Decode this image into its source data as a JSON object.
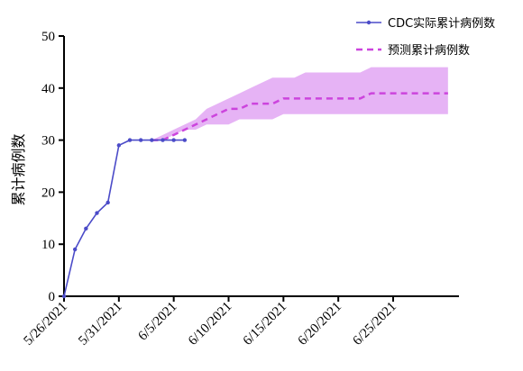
{
  "chart_data": {
    "type": "line",
    "ylabel": "累计病例数",
    "ylim": [
      0,
      50
    ],
    "yticks": [
      0,
      10,
      20,
      30,
      40,
      50
    ],
    "xlim": [
      "2021-05-26",
      "2021-07-01"
    ],
    "xticks": [
      "2021-05-26",
      "2021-05-31",
      "2021-06-05",
      "2021-06-10",
      "2021-06-15",
      "2021-06-20",
      "2021-06-25"
    ],
    "xtick_labels": [
      "5/26/2021",
      "5/31/2021",
      "6/5/2021",
      "6/10/2021",
      "6/15/2021",
      "6/20/2021",
      "6/25/2021"
    ],
    "grid": false,
    "legend_position": "top-right",
    "series": [
      {
        "name": "CDC实际累计病例数",
        "style": "solid-with-markers",
        "color": "#4b4bc8",
        "x": [
          "2021-05-26",
          "2021-05-27",
          "2021-05-28",
          "2021-05-29",
          "2021-05-30",
          "2021-05-31",
          "2021-06-01",
          "2021-06-02",
          "2021-06-03",
          "2021-06-04",
          "2021-06-05",
          "2021-06-06"
        ],
        "y": [
          0,
          9,
          13,
          16,
          18,
          29,
          30,
          30,
          30,
          30,
          30,
          30
        ]
      },
      {
        "name": "预测累计病例数",
        "style": "dashed",
        "color": "#cc44dd",
        "band_color": "#e6b3f5",
        "x": [
          "2021-06-03",
          "2021-06-04",
          "2021-06-05",
          "2021-06-06",
          "2021-06-07",
          "2021-06-08",
          "2021-06-09",
          "2021-06-10",
          "2021-06-11",
          "2021-06-12",
          "2021-06-13",
          "2021-06-14",
          "2021-06-15",
          "2021-06-16",
          "2021-06-17",
          "2021-06-18",
          "2021-06-19",
          "2021-06-20",
          "2021-06-21",
          "2021-06-22",
          "2021-06-23",
          "2021-06-24",
          "2021-06-25",
          "2021-06-26",
          "2021-06-27",
          "2021-06-28",
          "2021-06-29",
          "2021-06-30"
        ],
        "y": [
          30,
          30,
          31,
          32,
          33,
          34,
          35,
          36,
          36,
          37,
          37,
          37,
          38,
          38,
          38,
          38,
          38,
          38,
          38,
          38,
          39,
          39,
          39,
          39,
          39,
          39,
          39,
          39
        ],
        "lower": [
          30,
          30,
          31,
          32,
          32,
          33,
          33,
          33,
          34,
          34,
          34,
          34,
          35,
          35,
          35,
          35,
          35,
          35,
          35,
          35,
          35,
          35,
          35,
          35,
          35,
          35,
          35,
          35
        ],
        "upper": [
          30,
          31,
          32,
          33,
          34,
          36,
          37,
          38,
          39,
          40,
          41,
          42,
          42,
          42,
          43,
          43,
          43,
          43,
          43,
          43,
          44,
          44,
          44,
          44,
          44,
          44,
          44,
          44
        ]
      }
    ]
  }
}
